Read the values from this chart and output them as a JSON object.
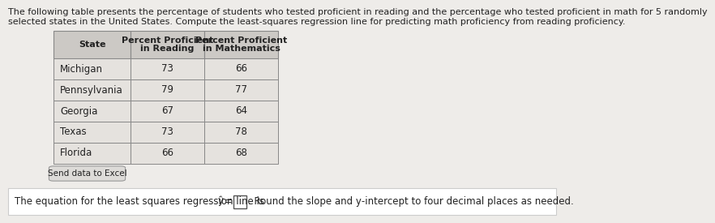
{
  "title_line1": "The following table presents the percentage of students who tested proficient in reading and the percentage who tested proficient in math for 5 randomly",
  "title_line2": "selected states in the United States. Compute the least-squares regression line for predicting math proficiency from reading proficiency.",
  "col_headers": [
    "State",
    "Percent Proficient\nin Reading",
    "Percent Proficient\nin Mathematics"
  ],
  "rows": [
    [
      "Michigan",
      "73",
      "66"
    ],
    [
      "Pennsylvania",
      "79",
      "77"
    ],
    [
      "Georgia",
      "67",
      "64"
    ],
    [
      "Texas",
      "73",
      "78"
    ],
    [
      "Florida",
      "66",
      "68"
    ]
  ],
  "button_text": "Send data to Excel",
  "footer_pre": "The equation for the least squares regression line is ",
  "footer_yhat": "ŷ",
  "footer_eq": " = ",
  "footer_post": ". Round the slope and y‑intercept to four decimal places as needed.",
  "bg_color": "#eeece9",
  "header_bg": "#ccc9c5",
  "cell_bg": "#e5e2de",
  "footer_bg": "#ffffff",
  "border_color": "#888888",
  "text_color": "#222222",
  "title_fontsize": 8.0,
  "table_fontsize": 8.5,
  "footer_fontsize": 8.5,
  "button_fontsize": 7.5
}
